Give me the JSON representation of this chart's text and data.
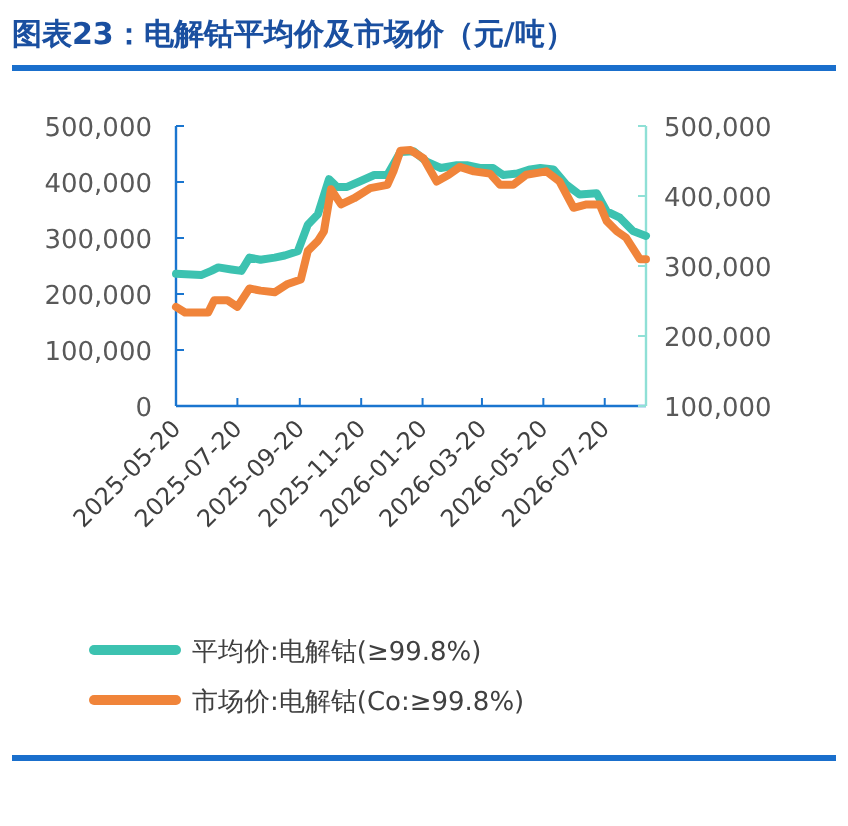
{
  "chart_data": {
    "type": "line",
    "title": "图表23：电解钴平均价及市场价（元/吨）",
    "xlim": [
      "2025-05-20",
      "2026-08-30"
    ],
    "xticks": [
      "2025-05-20",
      "2025-07-20",
      "2025-09-20",
      "2025-11-20",
      "2026-01-20",
      "2026-03-20",
      "2026-05-20",
      "2026-07-20"
    ],
    "ylim": [
      0,
      500000
    ],
    "yticks": [
      0,
      {
        "value": 100000,
        "label": "100,000"
      },
      {
        "value": 200000,
        "label": "200,000"
      },
      {
        "value": 300000,
        "label": "300,000"
      },
      {
        "value": 400000,
        "label": "400,000"
      },
      {
        "value": 500000,
        "label": "500,000"
      }
    ],
    "y2lim": [
      100000,
      500000
    ],
    "y2ticks": [
      {
        "value": 100000,
        "label": "100,000"
      },
      {
        "value": 200000,
        "label": "200,000"
      },
      {
        "value": 300000,
        "label": "300,000"
      },
      {
        "value": 400000,
        "label": "400,000"
      },
      {
        "value": 500000,
        "label": "500,000"
      }
    ],
    "legend": "bottom",
    "grid": false,
    "marker": "none",
    "line_style": "solid",
    "series": [
      {
        "name": "平均价:电解钴(≥99.8%)",
        "color": "#3cc2b0",
        "axis": "y2",
        "x": [
          "2025-05-20",
          "2025-06-14",
          "2025-06-24",
          "2025-07-01",
          "2025-07-14",
          "2025-07-24",
          "2025-08-01",
          "2025-08-12",
          "2025-08-26",
          "2025-09-05",
          "2025-09-18",
          "2025-09-28",
          "2025-10-08",
          "2025-10-19",
          "2025-10-27",
          "2025-11-06",
          "2025-11-19",
          "2025-12-03",
          "2025-12-16",
          "2025-12-29",
          "2026-01-11",
          "2026-01-24",
          "2026-02-07",
          "2026-02-23",
          "2026-03-05",
          "2026-03-18",
          "2026-03-31",
          "2026-04-10",
          "2026-04-24",
          "2026-05-07",
          "2026-05-17",
          "2026-05-30",
          "2026-06-12",
          "2026-06-25",
          "2026-07-12",
          "2026-07-22",
          "2026-08-04",
          "2026-08-17",
          "2026-08-30"
        ],
        "values": [
          289000,
          287000,
          293000,
          298000,
          295000,
          293000,
          312000,
          309000,
          312000,
          315000,
          321000,
          359000,
          374000,
          424000,
          413000,
          413000,
          421000,
          430000,
          430000,
          463000,
          464000,
          449000,
          440000,
          444000,
          444000,
          440000,
          440000,
          430000,
          432000,
          438000,
          440000,
          438000,
          416000,
          402000,
          404000,
          378000,
          369000,
          350000,
          343000
        ]
      },
      {
        "name": "市场价:电解钴(Co:≥99.8%)",
        "color": "#f0843a",
        "x": [
          "2025-05-20",
          "2025-05-29",
          "2025-06-21",
          "2025-06-27",
          "2025-07-10",
          "2025-07-20",
          "2025-08-01",
          "2025-08-12",
          "2025-08-26",
          "2025-09-08",
          "2025-09-21",
          "2025-09-28",
          "2025-10-08",
          "2025-10-14",
          "2025-10-21",
          "2025-10-31",
          "2025-11-13",
          "2025-11-29",
          "2025-12-16",
          "2025-12-22",
          "2025-12-29",
          "2026-01-08",
          "2026-01-21",
          "2026-02-03",
          "2026-02-15",
          "2026-02-26",
          "2026-03-12",
          "2026-03-28",
          "2026-04-07",
          "2026-04-20",
          "2026-05-03",
          "2026-05-23",
          "2026-06-05",
          "2026-06-19",
          "2026-07-02",
          "2026-07-15",
          "2026-07-22",
          "2026-08-01",
          "2026-08-10",
          "2026-08-24",
          "2026-08-30"
        ],
        "values": [
          177000,
          167000,
          167000,
          189000,
          189000,
          177000,
          210000,
          206000,
          203000,
          218000,
          226000,
          277000,
          295000,
          312000,
          387000,
          360000,
          371000,
          389000,
          395000,
          419000,
          456000,
          457000,
          442000,
          401000,
          413000,
          427000,
          419000,
          415000,
          395000,
          395000,
          413000,
          419000,
          401000,
          354000,
          360000,
          360000,
          330000,
          312000,
          301000,
          262000,
          262000
        ]
      }
    ]
  }
}
